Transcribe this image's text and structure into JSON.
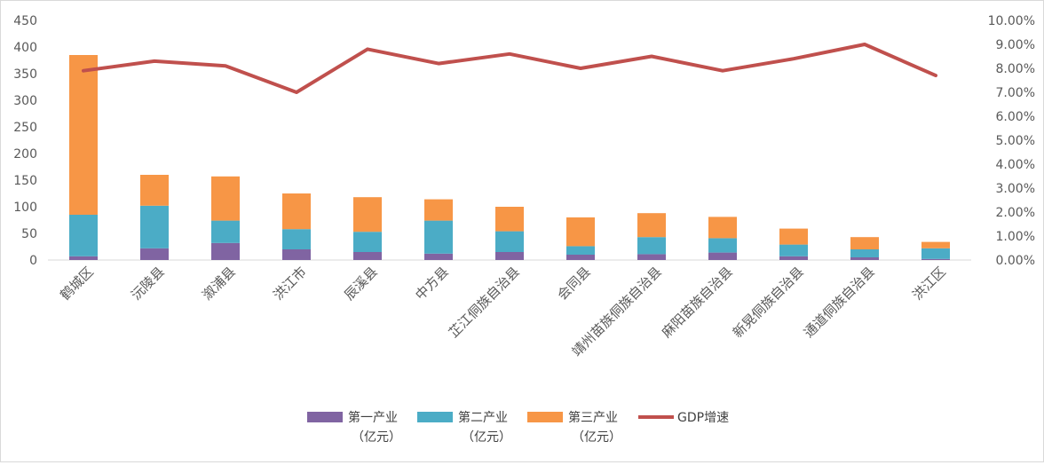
{
  "chart_data": {
    "type": "bar",
    "stacked": true,
    "categories": [
      "鹤城区",
      "沅陵县",
      "溆浦县",
      "洪江市",
      "辰溪县",
      "中方县",
      "芷江侗族自治县",
      "会同县",
      "靖州苗族侗族自治县",
      "麻阳苗族自治县",
      "新晃侗族自治县",
      "通道侗族自治县",
      "洪江区"
    ],
    "series": [
      {
        "name": "第一产业",
        "unit": "（亿元）",
        "color": "#8064a2",
        "axis": "left",
        "values": [
          7,
          22,
          32,
          20,
          15,
          12,
          15,
          10,
          11,
          14,
          7,
          5,
          2
        ]
      },
      {
        "name": "第二产业",
        "unit": "（亿元）",
        "color": "#4bacc6",
        "axis": "left",
        "values": [
          78,
          80,
          42,
          38,
          38,
          62,
          39,
          16,
          32,
          27,
          22,
          15,
          20
        ]
      },
      {
        "name": "第三产业",
        "unit": "（亿元）",
        "color": "#f79646",
        "axis": "left",
        "values": [
          300,
          58,
          83,
          67,
          65,
          40,
          46,
          54,
          45,
          40,
          30,
          23,
          12
        ]
      },
      {
        "name": "GDP增速",
        "unit": "",
        "color": "#c0504d",
        "axis": "right",
        "type": "line",
        "values": [
          7.9,
          8.3,
          8.1,
          7.0,
          8.8,
          8.2,
          8.6,
          8.0,
          8.5,
          7.9,
          8.4,
          9.0,
          7.7
        ]
      }
    ],
    "ylim": [
      0,
      450
    ],
    "yticks": [
      "0",
      "50",
      "100",
      "150",
      "200",
      "250",
      "300",
      "350",
      "400",
      "450"
    ],
    "y2lim": [
      0,
      10
    ],
    "y2ticks": [
      "0.00%",
      "1.00%",
      "2.00%",
      "3.00%",
      "4.00%",
      "5.00%",
      "6.00%",
      "7.00%",
      "8.00%",
      "9.00%",
      "10.00%"
    ],
    "legend_position": "bottom",
    "grid": false
  }
}
